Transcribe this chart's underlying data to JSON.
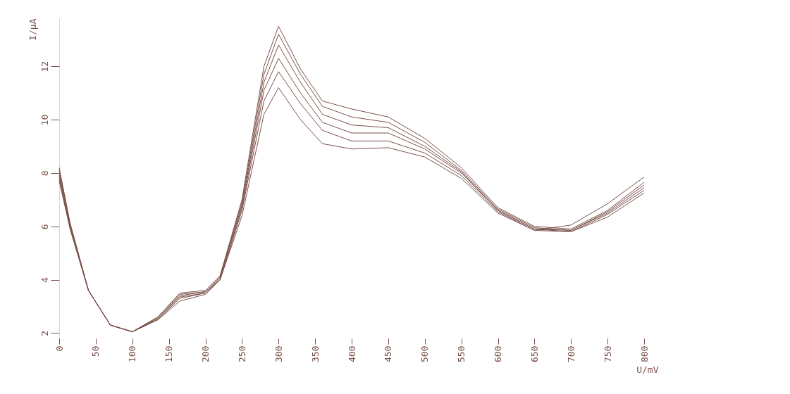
{
  "chart_data": {
    "type": "line",
    "xlabel": "U/mV",
    "ylabel": "I/μA",
    "x": [
      0,
      15,
      40,
      70,
      100,
      135,
      165,
      200,
      220,
      250,
      280,
      300,
      330,
      360,
      400,
      450,
      500,
      550,
      600,
      650,
      700,
      750,
      800
    ],
    "xlim": [
      0,
      800
    ],
    "xticks": [
      0,
      50,
      100,
      150,
      200,
      250,
      300,
      350,
      400,
      450,
      500,
      550,
      600,
      650,
      700,
      750,
      800
    ],
    "ylim": [
      1.8,
      13.8
    ],
    "yticks": [
      2,
      4,
      6,
      8,
      10,
      12
    ],
    "series": [
      {
        "color": "#7a5048",
        "values": [
          7.7,
          5.9,
          3.6,
          2.3,
          2.05,
          2.5,
          3.2,
          3.45,
          4.0,
          6.4,
          10.2,
          11.2,
          10.0,
          9.1,
          8.9,
          8.95,
          8.6,
          7.8,
          6.5,
          5.85,
          6.05,
          6.85,
          7.85
        ]
      },
      {
        "color": "#7a5048",
        "values": [
          7.8,
          5.9,
          3.6,
          2.3,
          2.05,
          2.5,
          3.3,
          3.5,
          4.0,
          6.6,
          10.7,
          11.8,
          10.6,
          9.6,
          9.2,
          9.2,
          8.75,
          7.9,
          6.55,
          5.85,
          5.8,
          6.35,
          7.25
        ]
      },
      {
        "color": "#7a5048",
        "values": [
          7.9,
          6.0,
          3.6,
          2.3,
          2.05,
          2.55,
          3.35,
          3.5,
          4.05,
          6.7,
          11.1,
          12.3,
          11.0,
          9.9,
          9.5,
          9.5,
          8.9,
          8.0,
          6.6,
          5.9,
          5.8,
          6.45,
          7.35
        ]
      },
      {
        "color": "#7a5048",
        "values": [
          8.0,
          6.0,
          3.6,
          2.3,
          2.05,
          2.55,
          3.4,
          3.55,
          4.1,
          6.8,
          11.4,
          12.8,
          11.4,
          10.2,
          9.8,
          9.7,
          9.0,
          8.05,
          6.6,
          5.9,
          5.85,
          6.5,
          7.45
        ]
      },
      {
        "color": "#7a5048",
        "values": [
          8.1,
          6.1,
          3.6,
          2.3,
          2.05,
          2.6,
          3.45,
          3.55,
          4.1,
          6.9,
          11.7,
          13.2,
          11.7,
          10.5,
          10.1,
          9.9,
          9.15,
          8.1,
          6.65,
          5.95,
          5.85,
          6.55,
          7.55
        ]
      },
      {
        "color": "#7a5048",
        "values": [
          8.2,
          6.1,
          3.6,
          2.3,
          2.05,
          2.6,
          3.5,
          3.6,
          4.15,
          7.0,
          12.0,
          13.5,
          11.9,
          10.7,
          10.4,
          10.1,
          9.3,
          8.2,
          6.7,
          6.0,
          5.9,
          6.6,
          7.65
        ]
      }
    ]
  }
}
